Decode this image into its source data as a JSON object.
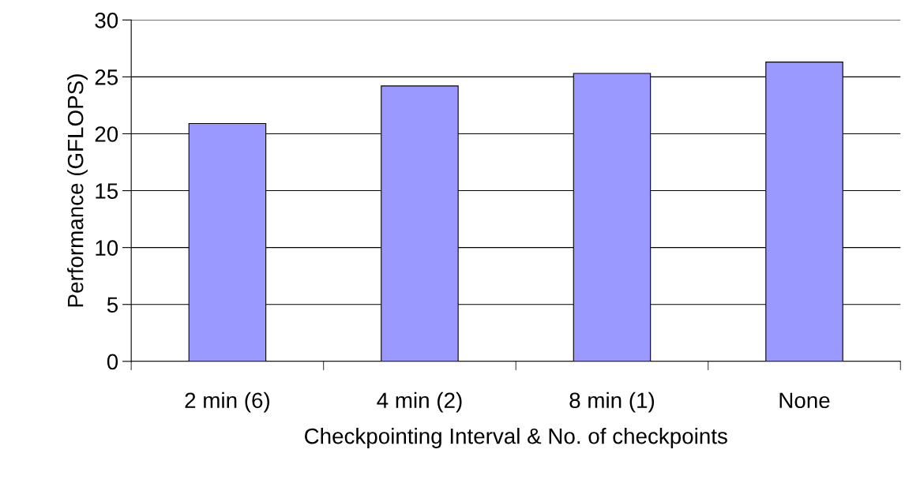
{
  "chart_data": {
    "type": "bar",
    "categories": [
      "2 min (6)",
      "4 min (2)",
      "8 min (1)",
      "None"
    ],
    "values": [
      20.9,
      24.2,
      25.3,
      26.3
    ],
    "color": "#9999ff",
    "xlabel": "Checkpointing Interval & No. of checkpoints",
    "ylabel": "Performance (GFLOPS)",
    "ylim": [
      0,
      30
    ],
    "yticks": [
      0,
      5,
      10,
      15,
      20,
      25,
      30
    ],
    "grid": "y",
    "legend": false
  }
}
